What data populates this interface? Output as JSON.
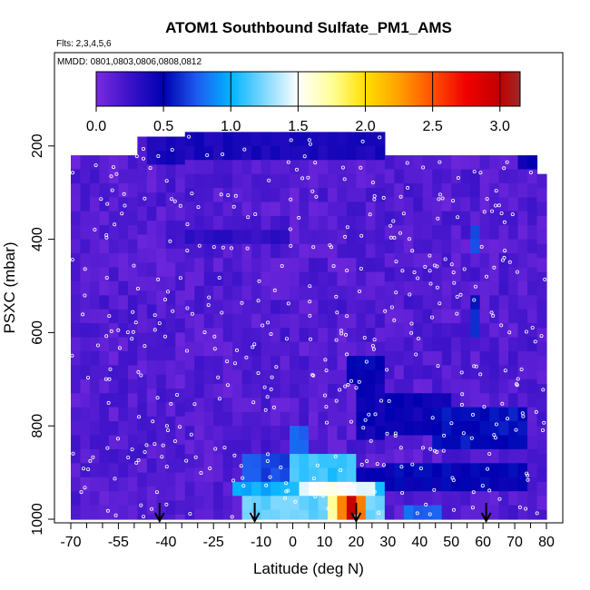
{
  "chart_data": {
    "type": "heatmap",
    "title": "ATOM1 Southbound Sulfate_PM1_AMS",
    "flights_label": "Flts: 2,3,4,5,6",
    "dates_label": "MMDD: 0801,0803,0806,0808,0812",
    "xlabel": "Latitude (deg N)",
    "ylabel": "PSXC (mbar)",
    "xlim": [
      -70,
      80
    ],
    "ylim": [
      1000,
      0
    ],
    "x_ticks": [
      -70,
      -55,
      -40,
      -25,
      -10,
      0,
      10,
      20,
      30,
      40,
      50,
      60,
      70,
      80
    ],
    "x_minor_ticks": [
      -65,
      -60,
      -50,
      -45,
      -35,
      -30,
      -20,
      -15,
      -5,
      5,
      15,
      25,
      35,
      45,
      55,
      65,
      75
    ],
    "y_ticks": [
      200,
      400,
      600,
      800,
      1000
    ],
    "colorbar": {
      "min": 0,
      "max": 3.15,
      "ticks": [
        0.0,
        0.5,
        1.0,
        1.5,
        2.0,
        2.5,
        3.0
      ],
      "tick_labels": [
        "0.0",
        "0.5",
        "1.0",
        "1.5",
        "2.0",
        "2.5",
        "3.0"
      ],
      "stops": [
        [
          0.0,
          "#7a2be0"
        ],
        [
          0.25,
          "#3a12c8"
        ],
        [
          0.5,
          "#0000b0"
        ],
        [
          0.75,
          "#1e5cf0"
        ],
        [
          1.0,
          "#00b4ff"
        ],
        [
          1.25,
          "#7fd8ff"
        ],
        [
          1.5,
          "#ffffff"
        ],
        [
          1.75,
          "#ffff99"
        ],
        [
          2.0,
          "#ffe000"
        ],
        [
          2.25,
          "#ffa000"
        ],
        [
          2.5,
          "#ff5000"
        ],
        [
          2.75,
          "#f00000"
        ],
        [
          3.0,
          "#c00000"
        ],
        [
          3.15,
          "#a02828"
        ]
      ]
    },
    "background_value": 0.15,
    "profile_extent": [
      {
        "lat_min": -70,
        "lat_max": -50,
        "p_top": 220,
        "p_bottom": 1000
      },
      {
        "lat_min": -50,
        "lat_max": -35,
        "p_top": 180,
        "p_bottom": 1000
      },
      {
        "lat_min": -35,
        "lat_max": 30,
        "p_top": 170,
        "p_bottom": 1000
      },
      {
        "lat_min": 30,
        "lat_max": 77,
        "p_top": 220,
        "p_bottom": 1000
      },
      {
        "lat_min": 77,
        "lat_max": 79,
        "p_top": 260,
        "p_bottom": 1000
      },
      {
        "lat_min": 79,
        "lat_max": 80,
        "p_top": 330,
        "p_bottom": 1000
      }
    ],
    "features": [
      {
        "lat_min": -47,
        "lat_max": 30,
        "p_top": 170,
        "p_bottom": 230,
        "value": 0.4
      },
      {
        "lat_min": 70,
        "lat_max": 77,
        "p_top": 220,
        "p_bottom": 260,
        "value": 0.5
      },
      {
        "lat_min": -35,
        "lat_max": 0,
        "p_top": 370,
        "p_bottom": 420,
        "value": 0.3
      },
      {
        "lat_min": 55,
        "lat_max": 60,
        "p_top": 380,
        "p_bottom": 420,
        "value": 0.7
      },
      {
        "lat_min": 55,
        "lat_max": 58,
        "p_top": 520,
        "p_bottom": 600,
        "value": 0.6
      },
      {
        "lat_min": 18,
        "lat_max": 30,
        "p_top": 640,
        "p_bottom": 720,
        "value": 0.5
      },
      {
        "lat_min": 20,
        "lat_max": 50,
        "p_top": 720,
        "p_bottom": 820,
        "value": 0.45
      },
      {
        "lat_min": 45,
        "lat_max": 75,
        "p_top": 760,
        "p_bottom": 860,
        "value": 0.55
      },
      {
        "lat_min": 0,
        "lat_max": 5,
        "p_top": 810,
        "p_bottom": 870,
        "value": 0.8
      },
      {
        "lat_min": -15,
        "lat_max": 20,
        "p_top": 870,
        "p_bottom": 910,
        "value": 0.7
      },
      {
        "lat_min": 0,
        "lat_max": 20,
        "p_top": 860,
        "p_bottom": 910,
        "value": 1.1
      },
      {
        "lat_min": 20,
        "lat_max": 75,
        "p_top": 880,
        "p_bottom": 930,
        "value": 0.5
      },
      {
        "lat_min": -20,
        "lat_max": 30,
        "p_top": 915,
        "p_bottom": 960,
        "value": 1.0
      },
      {
        "lat_min": 3,
        "lat_max": 25,
        "p_top": 915,
        "p_bottom": 960,
        "value": 1.5
      },
      {
        "lat_min": -15,
        "lat_max": 30,
        "p_top": 960,
        "p_bottom": 1000,
        "value": 1.2
      },
      {
        "lat_min": 10,
        "lat_max": 20,
        "p_top": 960,
        "p_bottom": 1000,
        "value": 1.7
      },
      {
        "lat_min": 15,
        "lat_max": 23,
        "p_top": 960,
        "p_bottom": 1000,
        "value": 2.4
      },
      {
        "lat_min": 17,
        "lat_max": 20,
        "p_top": 960,
        "p_bottom": 1000,
        "value": 3.0
      },
      {
        "lat_min": 36,
        "lat_max": 46,
        "p_top": 960,
        "p_bottom": 1000,
        "value": 0.8
      }
    ],
    "arrows_lat": [
      -42,
      -12,
      20,
      61
    ]
  }
}
